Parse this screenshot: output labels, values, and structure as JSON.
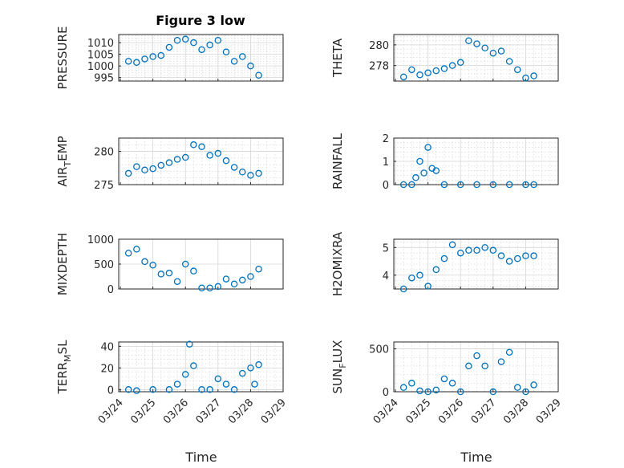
{
  "figure": {
    "title": "Figure 3 low",
    "xlabel": "Time"
  },
  "chart_data": [
    {
      "type": "scatter",
      "ylabel": "PRESSURE",
      "ylabel_main": "PRESSURE",
      "ylabel_sub": "",
      "ylabel_tail": "",
      "yticks": [
        995,
        1000,
        1005,
        1010
      ],
      "ylim": [
        993.5,
        1013.5
      ],
      "minor": true,
      "x": [
        "2024-03-24T06:00",
        "2024-03-24T12:00",
        "2024-03-24T18:00",
        "2024-03-25T00:00",
        "2024-03-25T06:00",
        "2024-03-25T12:00",
        "2024-03-25T18:00",
        "2024-03-26T00:00",
        "2024-03-26T06:00",
        "2024-03-26T12:00",
        "2024-03-26T18:00",
        "2024-03-27T00:00",
        "2024-03-27T06:00",
        "2024-03-27T12:00",
        "2024-03-27T18:00",
        "2024-03-28T00:00",
        "2024-03-28T06:00"
      ],
      "y": [
        1002,
        1001.5,
        1003,
        1004,
        1004.5,
        1008,
        1011,
        1011.5,
        1010,
        1007,
        1009,
        1011,
        1006,
        1002,
        1004,
        1000,
        996
      ]
    },
    {
      "type": "scatter",
      "ylabel": "THETA",
      "ylabel_main": "THETA",
      "ylabel_sub": "",
      "ylabel_tail": "",
      "yticks": [
        278,
        280
      ],
      "ylim": [
        276.5,
        281
      ],
      "minor": true,
      "x": [
        "2024-03-24T06:00",
        "2024-03-24T12:00",
        "2024-03-24T18:00",
        "2024-03-25T00:00",
        "2024-03-25T06:00",
        "2024-03-25T12:00",
        "2024-03-25T18:00",
        "2024-03-26T00:00",
        "2024-03-26T06:00",
        "2024-03-26T12:00",
        "2024-03-26T18:00",
        "2024-03-27T00:00",
        "2024-03-27T06:00",
        "2024-03-27T12:00",
        "2024-03-27T18:00",
        "2024-03-28T00:00",
        "2024-03-28T06:00"
      ],
      "y": [
        276.9,
        277.6,
        277.1,
        277.3,
        277.5,
        277.7,
        278.0,
        278.3,
        280.4,
        280.1,
        279.7,
        279.2,
        279.4,
        278.4,
        277.6,
        276.8,
        277.0
      ]
    },
    {
      "type": "scatter",
      "ylabel": "AIR_TEMP",
      "ylabel_main": "AIR",
      "ylabel_sub": "T",
      "ylabel_tail": "EMP",
      "yticks": [
        275,
        280
      ],
      "ylim": [
        275,
        282
      ],
      "minor": true,
      "x": [
        "2024-03-24T06:00",
        "2024-03-24T12:00",
        "2024-03-24T18:00",
        "2024-03-25T00:00",
        "2024-03-25T06:00",
        "2024-03-25T12:00",
        "2024-03-25T18:00",
        "2024-03-26T00:00",
        "2024-03-26T06:00",
        "2024-03-26T12:00",
        "2024-03-26T18:00",
        "2024-03-27T00:00",
        "2024-03-27T06:00",
        "2024-03-27T12:00",
        "2024-03-27T18:00",
        "2024-03-28T00:00",
        "2024-03-28T06:00"
      ],
      "y": [
        276.7,
        277.7,
        277.2,
        277.4,
        277.9,
        278.3,
        278.8,
        279.1,
        281.0,
        280.7,
        279.4,
        279.7,
        278.6,
        277.6,
        276.9,
        276.4,
        276.7
      ]
    },
    {
      "type": "scatter",
      "ylabel": "RAINFALL",
      "ylabel_main": "RAINFALL",
      "ylabel_sub": "",
      "ylabel_tail": "",
      "yticks": [
        0,
        1,
        2
      ],
      "ylim": [
        0,
        2
      ],
      "minor": true,
      "x": [
        "2024-03-24T06:00",
        "2024-03-24T12:00",
        "2024-03-24T15:00",
        "2024-03-24T18:00",
        "2024-03-24T21:00",
        "2024-03-25T00:00",
        "2024-03-25T03:00",
        "2024-03-25T06:00",
        "2024-03-25T12:00",
        "2024-03-26T00:00",
        "2024-03-26T12:00",
        "2024-03-27T00:00",
        "2024-03-27T12:00",
        "2024-03-28T00:00",
        "2024-03-28T06:00"
      ],
      "y": [
        0,
        0,
        0.3,
        1.0,
        0.5,
        1.6,
        0.7,
        0.6,
        0,
        0,
        0,
        0,
        0,
        0,
        0
      ]
    },
    {
      "type": "scatter",
      "ylabel": "MIXDEPTH",
      "ylabel_main": "MIXDEPTH",
      "ylabel_sub": "",
      "ylabel_tail": "",
      "yticks": [
        0,
        500,
        1000
      ],
      "ylim": [
        0,
        1000
      ],
      "minor": false,
      "x": [
        "2024-03-24T06:00",
        "2024-03-24T12:00",
        "2024-03-24T18:00",
        "2024-03-25T00:00",
        "2024-03-25T06:00",
        "2024-03-25T12:00",
        "2024-03-25T18:00",
        "2024-03-26T00:00",
        "2024-03-26T06:00",
        "2024-03-26T12:00",
        "2024-03-26T18:00",
        "2024-03-27T00:00",
        "2024-03-27T06:00",
        "2024-03-27T12:00",
        "2024-03-27T18:00",
        "2024-03-28T00:00",
        "2024-03-28T06:00"
      ],
      "y": [
        720,
        800,
        550,
        480,
        300,
        320,
        150,
        500,
        360,
        20,
        20,
        50,
        200,
        100,
        180,
        250,
        400
      ]
    },
    {
      "type": "scatter",
      "ylabel": "H2OMIXRA",
      "ylabel_main": "H2OMIXRA",
      "ylabel_sub": "",
      "ylabel_tail": "",
      "yticks": [
        4,
        5
      ],
      "ylim": [
        3.5,
        5.3
      ],
      "minor": true,
      "x": [
        "2024-03-24T06:00",
        "2024-03-24T12:00",
        "2024-03-24T18:00",
        "2024-03-25T00:00",
        "2024-03-25T06:00",
        "2024-03-25T12:00",
        "2024-03-25T18:00",
        "2024-03-26T00:00",
        "2024-03-26T06:00",
        "2024-03-26T12:00",
        "2024-03-26T18:00",
        "2024-03-27T00:00",
        "2024-03-27T06:00",
        "2024-03-27T12:00",
        "2024-03-27T18:00",
        "2024-03-28T00:00",
        "2024-03-28T06:00"
      ],
      "y": [
        3.5,
        3.9,
        4.0,
        3.6,
        4.2,
        4.6,
        5.1,
        4.8,
        4.9,
        4.9,
        5.0,
        4.9,
        4.7,
        4.5,
        4.6,
        4.7,
        4.7
      ]
    },
    {
      "type": "scatter",
      "ylabel": "TERR_MSL",
      "ylabel_main": "TERR",
      "ylabel_sub": "M",
      "ylabel_tail": "SL",
      "yticks": [
        0,
        20,
        40
      ],
      "ylim": [
        -2,
        44
      ],
      "minor": true,
      "x": [
        "2024-03-24T06:00",
        "2024-03-24T12:00",
        "2024-03-25T00:00",
        "2024-03-25T12:00",
        "2024-03-25T18:00",
        "2024-03-26T00:00",
        "2024-03-26T03:00",
        "2024-03-26T06:00",
        "2024-03-26T12:00",
        "2024-03-26T18:00",
        "2024-03-27T00:00",
        "2024-03-27T06:00",
        "2024-03-27T12:00",
        "2024-03-27T18:00",
        "2024-03-28T00:00",
        "2024-03-28T03:00",
        "2024-03-28T06:00"
      ],
      "y": [
        0,
        -1,
        0,
        0,
        5,
        14,
        42,
        22,
        0,
        0,
        10,
        5,
        0,
        15,
        20,
        5,
        23
      ]
    },
    {
      "type": "scatter",
      "ylabel": "SUN_FLUX",
      "ylabel_main": "SUN",
      "ylabel_sub": "F",
      "ylabel_tail": "LUX",
      "yticks": [
        0,
        500
      ],
      "ylim": [
        0,
        580
      ],
      "minor": true,
      "x": [
        "2024-03-24T06:00",
        "2024-03-24T12:00",
        "2024-03-24T18:00",
        "2024-03-25T00:00",
        "2024-03-25T06:00",
        "2024-03-25T12:00",
        "2024-03-25T18:00",
        "2024-03-26T00:00",
        "2024-03-26T06:00",
        "2024-03-26T12:00",
        "2024-03-26T18:00",
        "2024-03-27T00:00",
        "2024-03-27T06:00",
        "2024-03-27T12:00",
        "2024-03-27T18:00",
        "2024-03-28T00:00",
        "2024-03-28T06:00"
      ],
      "y": [
        50,
        100,
        10,
        0,
        20,
        150,
        100,
        0,
        300,
        420,
        300,
        0,
        350,
        460,
        50,
        0,
        80
      ]
    }
  ],
  "xaxis": {
    "ticks": [
      "03/24",
      "03/25",
      "03/26",
      "03/27",
      "03/28",
      "03/29"
    ],
    "tick_dates": [
      "2024-03-24",
      "2024-03-25",
      "2024-03-26",
      "2024-03-27",
      "2024-03-28",
      "2024-03-29"
    ]
  }
}
